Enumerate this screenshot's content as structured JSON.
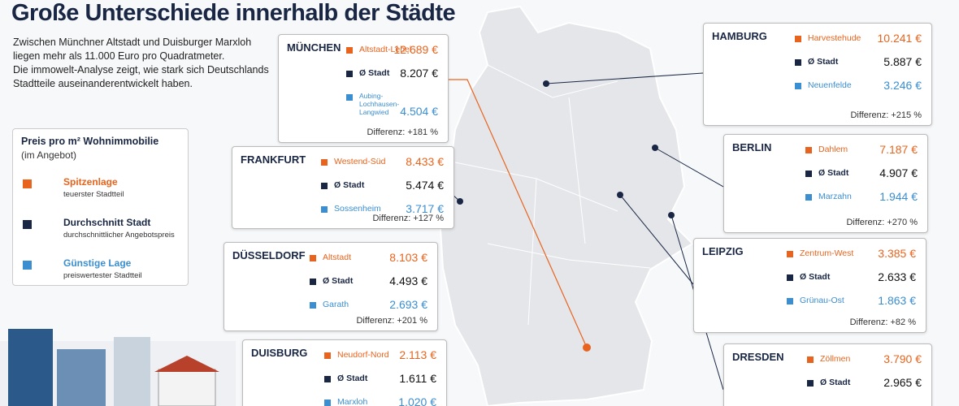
{
  "header": {
    "title": "Große Unterschiede innerhalb der Städte",
    "intro": [
      "Zwischen Münchner Altstadt und Duisburger Marxloh",
      "liegen mehr als 11.000 Euro pro Quadratmeter.",
      "Die immowelt-Analyse zeigt, wie stark sich Deutschlands",
      "Stadtteile auseinanderentwickelt haben."
    ]
  },
  "legend": {
    "title": "Preis pro m² Wohnimmobilie",
    "subtitle": "(im Angebot)",
    "items": [
      {
        "label": "Spitzenlage",
        "note": "teuerster Stadtteil",
        "color": "#e8641e"
      },
      {
        "label": "Durchschnitt Stadt",
        "note": "durchschnittlicher Angebotspreis",
        "color": "#1a2744"
      },
      {
        "label": "Günstige Lage",
        "note": "preiswertester Stadtteil",
        "color": "#3b8ed0"
      }
    ]
  },
  "cities": [
    {
      "name": "MÜNCHEN",
      "rows": [
        {
          "label": "Altstadt-Lehel",
          "value": "12.689 €"
        },
        {
          "label": "Ø Stadt",
          "value": "8.207 €"
        },
        {
          "label": "Aubing-Lochhausen-Langwied",
          "value": "4.504 €"
        }
      ],
      "difference": "Differenz: +181 %"
    },
    {
      "name": "FRANKFURT",
      "rows": [
        {
          "label": "Westend-Süd",
          "value": "8.433 €"
        },
        {
          "label": "Ø Stadt",
          "value": "5.474 €"
        },
        {
          "label": "Sossenheim",
          "value": "3.717 €"
        }
      ],
      "difference": "Differenz: +127 %"
    },
    {
      "name": "DÜSSELDORF",
      "rows": [
        {
          "label": "Altstadt",
          "value": "8.103 €"
        },
        {
          "label": "Ø Stadt",
          "value": "4.493 €"
        },
        {
          "label": "Garath",
          "value": "2.693 €"
        }
      ],
      "difference": "Differenz: +201 %"
    },
    {
      "name": "DUISBURG",
      "rows": [
        {
          "label": "Neudorf-Nord",
          "value": "2.113 €"
        },
        {
          "label": "Ø Stadt",
          "value": "1.611 €"
        },
        {
          "label": "Marxloh",
          "value": "1.020 €"
        }
      ]
    },
    {
      "name": "HAMBURG",
      "rows": [
        {
          "label": "Harvestehude",
          "value": "10.241 €"
        },
        {
          "label": "Ø Stadt",
          "value": "5.887 €"
        },
        {
          "label": "Neuenfelde",
          "value": "3.246 €"
        }
      ],
      "difference": "Differenz: +215 %"
    },
    {
      "name": "BERLIN",
      "rows": [
        {
          "label": "Dahlem",
          "value": "7.187 €"
        },
        {
          "label": "Ø Stadt",
          "value": "4.907 €"
        },
        {
          "label": "Marzahn",
          "value": "1.944 €"
        }
      ],
      "difference": "Differenz: +270 %"
    },
    {
      "name": "LEIPZIG",
      "rows": [
        {
          "label": "Zentrum-West",
          "value": "3.385 €"
        },
        {
          "label": "Ø Stadt",
          "value": "2.633 €"
        },
        {
          "label": "Grünau-Ost",
          "value": "1.863 €"
        }
      ],
      "difference": "Differenz: +82 %"
    },
    {
      "name": "DRESDEN",
      "rows": [
        {
          "label": "Zöllmen",
          "value": "3.790 €"
        },
        {
          "label": "Ø Stadt",
          "value": "2.965 €"
        }
      ]
    }
  ]
}
